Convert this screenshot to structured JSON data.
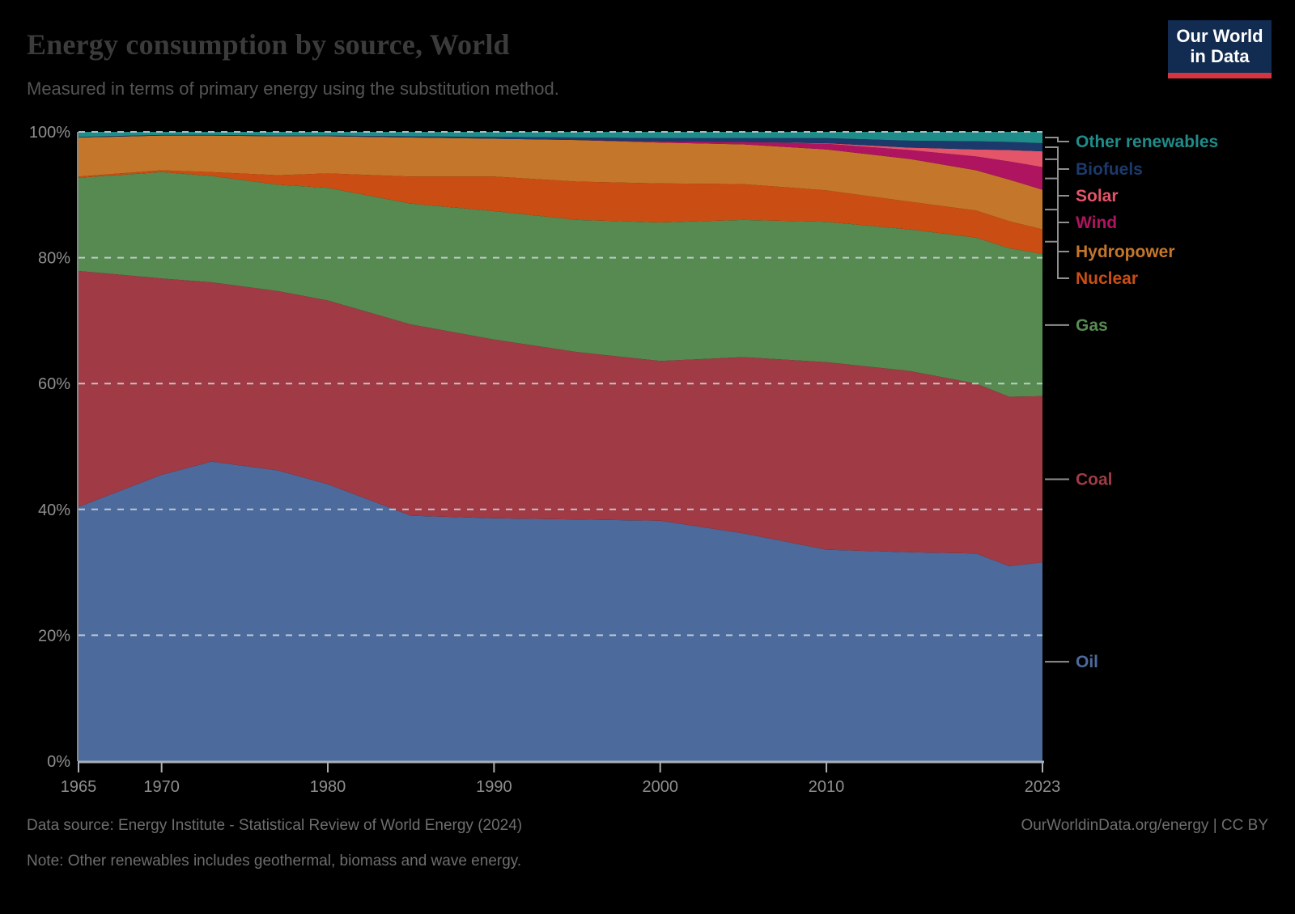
{
  "page": {
    "background": "#000000"
  },
  "header": {
    "title": "Energy consumption by source, World",
    "subtitle": "Measured in terms of primary energy using the substitution method."
  },
  "logo": {
    "line1": "Our World",
    "line2": "in Data",
    "bg": "#122b50",
    "accent": "#d5353f"
  },
  "footer": {
    "source": "Data source: Energy Institute - Statistical Review of World Energy (2024)",
    "note": "Note: Other renewables includes geothermal, biomass and wave energy.",
    "attribution": "OurWorldinData.org/energy | CC BY"
  },
  "chart_data": {
    "type": "area",
    "stacking": "relative",
    "title": "Energy consumption by source, World",
    "xlabel": "",
    "ylabel": "",
    "xlim": [
      1965,
      2023
    ],
    "ylim": [
      0,
      100
    ],
    "grid": "dashed-horizontal",
    "legend_position": "right",
    "y_ticks": [
      0,
      20,
      40,
      60,
      80,
      100
    ],
    "y_tick_suffix": "%",
    "x_ticks": [
      1965,
      1970,
      1980,
      1990,
      2000,
      2010,
      2023
    ],
    "x": [
      1965,
      1970,
      1973,
      1977,
      1980,
      1985,
      1990,
      1995,
      2000,
      2005,
      2010,
      2015,
      2019,
      2021,
      2023
    ],
    "series": [
      {
        "key": "oil",
        "name": "Oil",
        "color": "#4C6A9C",
        "values": [
          40.4,
          45.5,
          47.6,
          46.2,
          44.0,
          39.0,
          38.6,
          38.4,
          38.2,
          36.2,
          33.6,
          33.2,
          33.0,
          31.0,
          31.6
        ]
      },
      {
        "key": "coal",
        "name": "Coal",
        "color": "#A03A44",
        "values": [
          37.5,
          31.2,
          28.5,
          28.5,
          29.2,
          30.4,
          28.4,
          26.6,
          25.4,
          28.0,
          29.8,
          28.8,
          27.0,
          26.9,
          26.4
        ]
      },
      {
        "key": "gas",
        "name": "Gas",
        "color": "#578A51",
        "values": [
          14.8,
          16.9,
          16.9,
          16.9,
          17.9,
          19.2,
          20.4,
          21.0,
          22.0,
          21.8,
          22.3,
          22.5,
          23.2,
          23.6,
          22.6
        ]
      },
      {
        "key": "nuclear",
        "name": "Nuclear",
        "color": "#CA4E14",
        "values": [
          0.2,
          0.3,
          0.6,
          1.5,
          2.3,
          4.3,
          5.5,
          6.1,
          6.2,
          5.7,
          5.0,
          4.4,
          4.3,
          4.3,
          3.9
        ]
      },
      {
        "key": "hydropower",
        "name": "Hydropower",
        "color": "#C4772A",
        "values": [
          6.2,
          5.5,
          5.8,
          6.2,
          5.9,
          6.2,
          6.0,
          6.6,
          6.5,
          6.3,
          6.5,
          6.8,
          6.4,
          6.6,
          6.3
        ]
      },
      {
        "key": "wind",
        "name": "Wind",
        "color": "#AE145F",
        "values": [
          0.0,
          0.0,
          0.0,
          0.0,
          0.0,
          0.0,
          0.0,
          0.0,
          0.2,
          0.4,
          0.9,
          1.4,
          2.2,
          2.9,
          3.6
        ]
      },
      {
        "key": "solar",
        "name": "Solar",
        "color": "#E4556A",
        "values": [
          0.0,
          0.0,
          0.0,
          0.0,
          0.0,
          0.0,
          0.0,
          0.0,
          0.0,
          0.0,
          0.1,
          0.4,
          1.1,
          1.8,
          2.5
        ]
      },
      {
        "key": "biofuels",
        "name": "Biofuels",
        "color": "#1B3A6B",
        "values": [
          0.1,
          0.1,
          0.1,
          0.1,
          0.1,
          0.2,
          0.3,
          0.4,
          0.5,
          0.6,
          0.8,
          1.1,
          1.3,
          1.3,
          1.3
        ]
      },
      {
        "key": "other-renewables",
        "name": "Other renewables",
        "color": "#1F8C8A",
        "values": [
          0.8,
          0.5,
          0.5,
          0.6,
          0.6,
          0.7,
          0.8,
          0.9,
          1.0,
          1.0,
          1.0,
          1.4,
          1.5,
          1.6,
          1.8
        ]
      }
    ],
    "legend_order_top_to_bottom": [
      "Other renewables",
      "Biofuels",
      "Solar",
      "Wind",
      "Hydropower",
      "Nuclear",
      "Gas",
      "Coal",
      "Oil"
    ]
  }
}
